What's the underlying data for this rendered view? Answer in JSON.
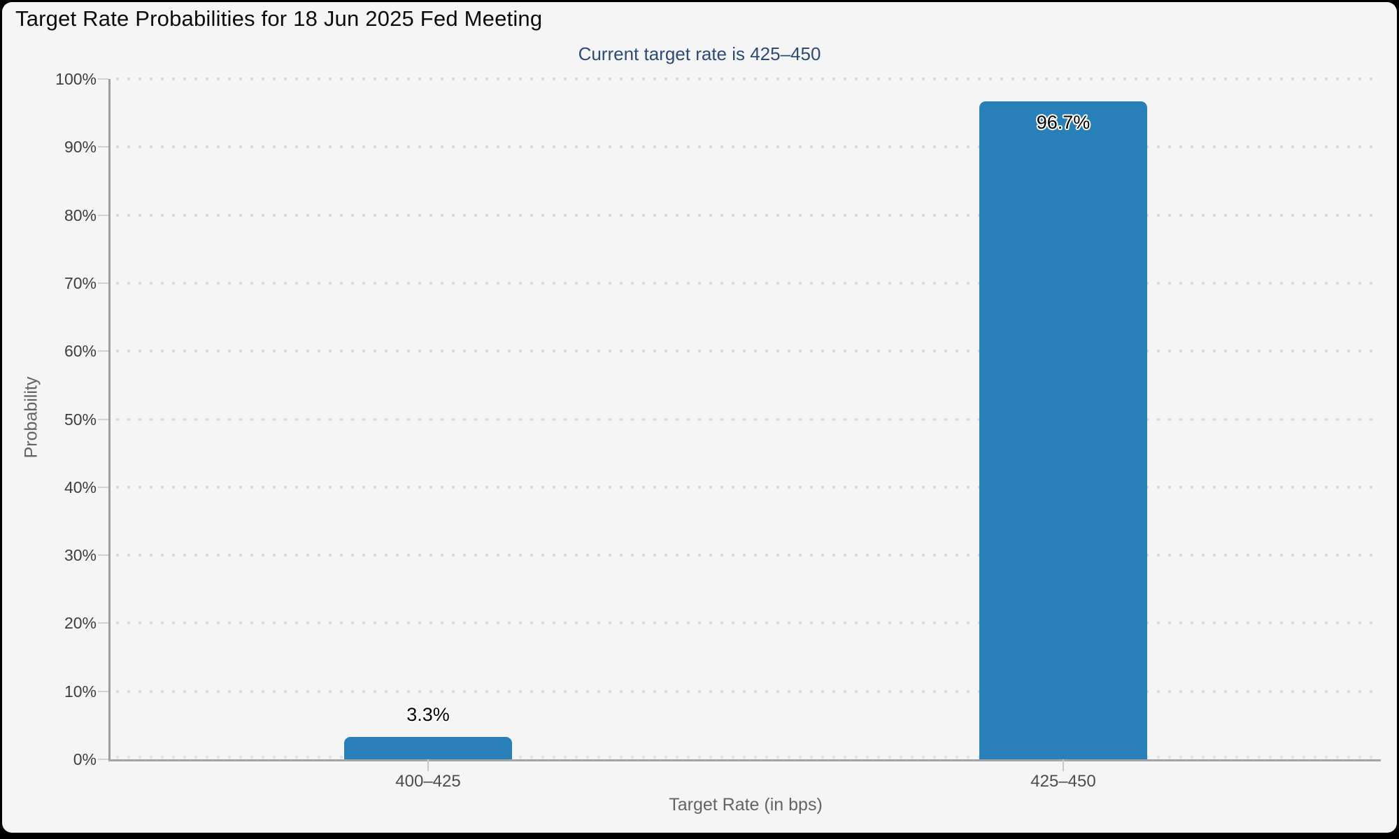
{
  "title": "Target Rate Probabilities for 18 Jun 2025 Fed Meeting",
  "subtitle": "Current target rate is 425–450",
  "chart_data": {
    "type": "bar",
    "title": "Target Rate Probabilities for 18 Jun 2025 Fed Meeting",
    "subtitle": "Current target rate is 425–450",
    "categories": [
      "400–425",
      "425–450"
    ],
    "values": [
      3.3,
      96.7
    ],
    "value_labels": [
      "3.3%",
      "96.7%"
    ],
    "xlabel": "Target Rate (in bps)",
    "ylabel": "Probability",
    "ylim": [
      0,
      100
    ],
    "ytick_step": 10,
    "yticks": [
      "0%",
      "10%",
      "20%",
      "30%",
      "40%",
      "50%",
      "60%",
      "70%",
      "80%",
      "90%",
      "100%"
    ],
    "grid": "dotted horizontal gridlines, on",
    "legend": "none",
    "bar_color": "#2980b9"
  },
  "colors": {
    "background": "#f5f5f6",
    "frame_border": "#000000",
    "bar": "#2980b9",
    "title_text": "#0b0b0b",
    "subtitle_text": "#2e4b77",
    "axis_line": "#9e9e9e",
    "grid_dots": "#dcdcde",
    "y_tick_label": "#3e3e40",
    "x_tick_label": "#4d4d4f",
    "axis_title": "#646466"
  }
}
